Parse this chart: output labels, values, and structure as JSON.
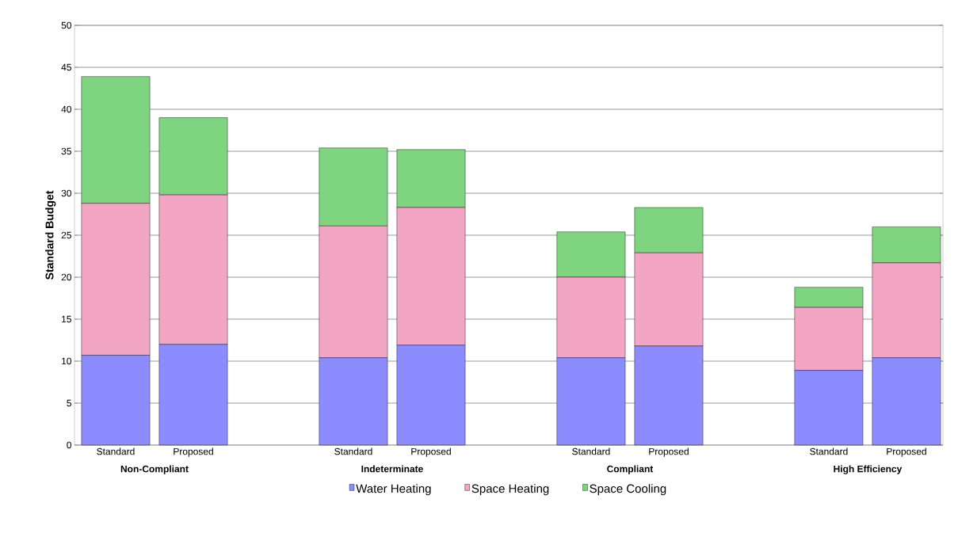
{
  "chart_data": {
    "type": "bar",
    "stacked": true,
    "ylabel": "Standard Budget",
    "categories": [
      "Standard",
      "Proposed",
      "Standard",
      "Proposed",
      "Standard",
      "Proposed",
      "Standard",
      "Proposed"
    ],
    "annotations": [
      "Non-Compliant",
      "Indeterminate",
      "Compliant",
      "High Efficiency"
    ],
    "series": [
      {
        "name": "Water Heating",
        "color": "#8c8cff",
        "values": [
          10.7,
          12.0,
          10.4,
          11.9,
          10.4,
          11.8,
          8.9,
          10.4
        ]
      },
      {
        "name": "Space Heating",
        "color": "#f2a6c4",
        "values": [
          18.1,
          17.8,
          15.7,
          16.4,
          9.6,
          11.1,
          7.5,
          11.3
        ]
      },
      {
        "name": "Space Cooling",
        "color": "#7fd47f",
        "values": [
          15.1,
          9.2,
          9.3,
          6.9,
          5.4,
          5.4,
          2.4,
          4.3
        ]
      }
    ],
    "ylim": [
      0,
      50
    ],
    "yticks": [
      0,
      5,
      10,
      15,
      20,
      25,
      30,
      35,
      40,
      45,
      50
    ],
    "grid": "y",
    "legend": "bottom"
  }
}
